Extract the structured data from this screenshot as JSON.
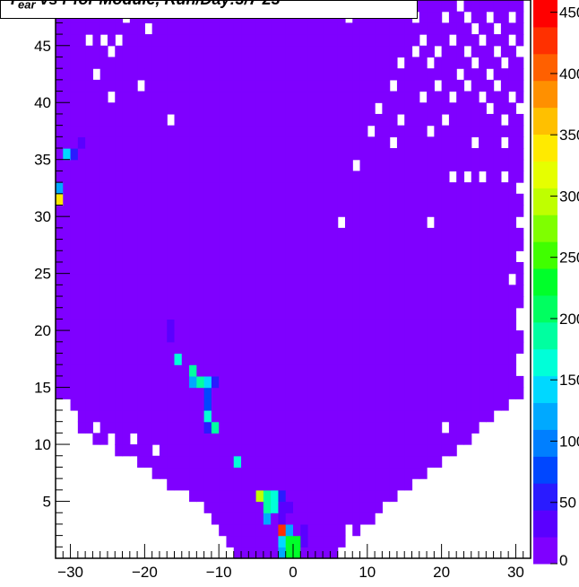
{
  "chart_data": {
    "type": "heatmap",
    "title": "T_ear vs r for Module, Run/Day:3/7 23",
    "title_main": "T",
    "title_sub": "ear",
    "title_rest": " vs r for Module, Run/Day:3/7 23",
    "xlim": [
      -32,
      32
    ],
    "ylim": [
      0,
      49
    ],
    "x_ticks": [
      -30,
      -20,
      -10,
      0,
      10,
      20,
      30
    ],
    "x_tick_labels": [
      "−30",
      "−20",
      "−10",
      "0",
      "10",
      "20",
      "30"
    ],
    "y_ticks": [
      5,
      10,
      15,
      20,
      25,
      30,
      35,
      40,
      45
    ],
    "y_tick_labels": [
      "5",
      "10",
      "15",
      "20",
      "25",
      "30",
      "35",
      "40",
      "45"
    ],
    "z_range": [
      0,
      460
    ],
    "z_ticks": [
      0,
      50,
      100,
      150,
      200,
      250,
      300,
      350,
      400,
      450
    ],
    "z_tick_labels": [
      "0",
      "50",
      "100",
      "150",
      "200",
      "250",
      "300",
      "350",
      "400",
      "450"
    ],
    "bin_width": 1,
    "background_value": 5,
    "region": {
      "shape": "U-shaped wedge, filled bins",
      "left_boundary": [
        [
          0,
          -7
        ],
        [
          5,
          -13
        ],
        [
          8,
          -20
        ],
        [
          10,
          -25
        ],
        [
          11,
          -28
        ],
        [
          13,
          -30
        ],
        [
          15,
          -32
        ],
        [
          49,
          -32
        ]
      ],
      "right_boundary": [
        [
          0,
          5
        ],
        [
          5,
          13
        ],
        [
          8,
          19
        ],
        [
          10,
          23
        ],
        [
          12,
          26
        ],
        [
          14,
          31
        ],
        [
          49,
          31
        ]
      ]
    },
    "hot_bins": [
      {
        "x": -31.5,
        "y": 32.5,
        "value": 130
      },
      {
        "x": -31.5,
        "y": 31.5,
        "value": 330
      },
      {
        "x": -30.5,
        "y": 35.5,
        "value": 150
      },
      {
        "x": -29.5,
        "y": 35.5,
        "value": 60
      },
      {
        "x": -28.5,
        "y": 36.5,
        "value": 40
      },
      {
        "x": -16.5,
        "y": 20.5,
        "value": 40
      },
      {
        "x": -16.5,
        "y": 19.5,
        "value": 40
      },
      {
        "x": -15.5,
        "y": 17.5,
        "value": 160
      },
      {
        "x": -13.5,
        "y": 16.5,
        "value": 190
      },
      {
        "x": -13.5,
        "y": 15.5,
        "value": 130
      },
      {
        "x": -12.5,
        "y": 15.5,
        "value": 190
      },
      {
        "x": -11.5,
        "y": 15.5,
        "value": 140
      },
      {
        "x": -10.5,
        "y": 15.5,
        "value": 60
      },
      {
        "x": -11.5,
        "y": 14.5,
        "value": 80
      },
      {
        "x": -11.5,
        "y": 13.5,
        "value": 80
      },
      {
        "x": -11.5,
        "y": 12.5,
        "value": 160
      },
      {
        "x": -10.5,
        "y": 11.5,
        "value": 190
      },
      {
        "x": -11.5,
        "y": 11.5,
        "value": 60
      },
      {
        "x": -7.5,
        "y": 8.5,
        "value": 170
      },
      {
        "x": -4.5,
        "y": 5.5,
        "value": 290
      },
      {
        "x": -3.5,
        "y": 5.5,
        "value": 180
      },
      {
        "x": -3.5,
        "y": 4.5,
        "value": 190
      },
      {
        "x": -2.5,
        "y": 5.5,
        "value": 170
      },
      {
        "x": -2.5,
        "y": 4.5,
        "value": 170
      },
      {
        "x": -3.5,
        "y": 3.5,
        "value": 120
      },
      {
        "x": -1.5,
        "y": 5.5,
        "value": 60
      },
      {
        "x": -1.5,
        "y": 4.5,
        "value": 40
      },
      {
        "x": -0.5,
        "y": 4.5,
        "value": 30
      },
      {
        "x": -1.5,
        "y": 3.5,
        "value": 40
      },
      {
        "x": -0.5,
        "y": 2.5,
        "value": 120
      },
      {
        "x": -1.5,
        "y": 2.5,
        "value": 420
      },
      {
        "x": -0.5,
        "y": 1.5,
        "value": 240
      },
      {
        "x": 0.5,
        "y": 1.5,
        "value": 240
      },
      {
        "x": -0.5,
        "y": 0.5,
        "value": 230
      },
      {
        "x": 0.5,
        "y": 0.5,
        "value": 230
      },
      {
        "x": -1.5,
        "y": 1.5,
        "value": 150
      },
      {
        "x": -1.5,
        "y": 0.5,
        "value": 120
      },
      {
        "x": 1.5,
        "y": 1.5,
        "value": 30
      },
      {
        "x": 1.5,
        "y": 2.5,
        "value": 40
      }
    ],
    "empty_bins": [
      [
        -22.5,
        47.5
      ],
      [
        -19.5,
        46.5
      ],
      [
        -27.5,
        45.5
      ],
      [
        -25.5,
        45.5
      ],
      [
        -23.5,
        45.5
      ],
      [
        -24.5,
        44.5
      ],
      [
        -26.5,
        42.5
      ],
      [
        -24.5,
        40.5
      ],
      [
        -20.5,
        41.5
      ],
      [
        -16.5,
        38.5
      ],
      [
        3.5,
        48.5
      ],
      [
        7.5,
        47.5
      ],
      [
        15.5,
        48.5
      ],
      [
        16.5,
        47.5
      ],
      [
        20.5,
        47.5
      ],
      [
        22.5,
        48.5
      ],
      [
        23.5,
        47.5
      ],
      [
        24.5,
        46.5
      ],
      [
        26.5,
        47.5
      ],
      [
        27.5,
        46.5
      ],
      [
        29.5,
        47.5
      ],
      [
        17.5,
        45.5
      ],
      [
        19.5,
        44.5
      ],
      [
        21.5,
        45.5
      ],
      [
        23.5,
        44.5
      ],
      [
        25.5,
        45.5
      ],
      [
        27.5,
        44.5
      ],
      [
        29.5,
        45.5
      ],
      [
        30.5,
        44.5
      ],
      [
        14.5,
        43.5
      ],
      [
        16.5,
        44.5
      ],
      [
        18.5,
        43.5
      ],
      [
        22.5,
        42.5
      ],
      [
        24.5,
        43.5
      ],
      [
        26.5,
        42.5
      ],
      [
        28.5,
        43.5
      ],
      [
        13.5,
        41.5
      ],
      [
        17.5,
        40.5
      ],
      [
        19.5,
        41.5
      ],
      [
        21.5,
        40.5
      ],
      [
        23.5,
        41.5
      ],
      [
        25.5,
        40.5
      ],
      [
        27.5,
        41.5
      ],
      [
        29.5,
        40.5
      ],
      [
        11.5,
        39.5
      ],
      [
        14.5,
        38.5
      ],
      [
        20.5,
        38.5
      ],
      [
        26.5,
        39.5
      ],
      [
        28.5,
        38.5
      ],
      [
        30.5,
        39.5
      ],
      [
        10.5,
        37.5
      ],
      [
        13.5,
        36.5
      ],
      [
        18.5,
        37.5
      ],
      [
        24.5,
        36.5
      ],
      [
        28.5,
        36.5
      ],
      [
        8.5,
        34.5
      ],
      [
        21.5,
        33.5
      ],
      [
        23.5,
        33.5
      ],
      [
        25.5,
        33.5
      ],
      [
        28.5,
        33.5
      ],
      [
        30.5,
        32.5
      ],
      [
        6.5,
        29.5
      ],
      [
        18.5,
        29.5
      ],
      [
        30.5,
        29.5
      ],
      [
        30.5,
        26.5
      ],
      [
        29.5,
        24.5
      ],
      [
        30.5,
        21.5
      ],
      [
        30.5,
        20.5
      ],
      [
        30.5,
        17.5
      ],
      [
        30.5,
        16.5
      ],
      [
        29.5,
        13.5
      ],
      [
        25.5,
        10.5
      ],
      [
        20.5,
        11.5
      ],
      [
        -30.5,
        13.5
      ],
      [
        -29.5,
        12.5
      ],
      [
        -26.5,
        11.5
      ],
      [
        -24.5,
        10.5
      ],
      [
        -21.5,
        10.5
      ],
      [
        -18.5,
        9.5
      ],
      [
        -24.5,
        8.5
      ],
      [
        -21.5,
        7.5
      ],
      [
        -23.5,
        6.5
      ],
      [
        -19.5,
        5.5
      ],
      [
        -14.5,
        4.5
      ],
      [
        -16.5,
        3.5
      ],
      [
        -11.5,
        2.5
      ],
      [
        -15.5,
        1.5
      ],
      [
        13.5,
        3.5
      ],
      [
        18.5,
        4.5
      ],
      [
        20.5,
        5.5
      ],
      [
        23.5,
        7.5
      ],
      [
        24.5,
        8.5
      ],
      [
        15.5,
        2.5
      ],
      [
        10.5,
        1.5
      ],
      [
        7.5,
        2.5
      ],
      [
        9.5,
        0.5
      ]
    ]
  }
}
